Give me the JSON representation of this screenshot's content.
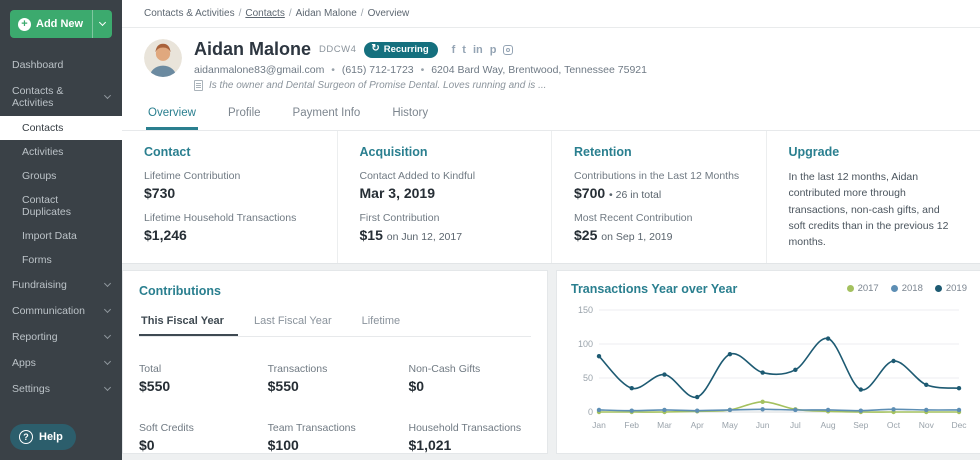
{
  "breadcrumb": {
    "parts": [
      "Contacts & Activities",
      "Contacts",
      "Aidan Malone",
      "Overview"
    ]
  },
  "sidebar": {
    "add_new_label": "Add New",
    "items": [
      {
        "label": "Dashboard"
      },
      {
        "label": "Contacts & Activities"
      },
      {
        "label": "Contacts"
      },
      {
        "label": "Activities"
      },
      {
        "label": "Groups"
      },
      {
        "label": "Contact Duplicates"
      },
      {
        "label": "Import Data"
      },
      {
        "label": "Forms"
      },
      {
        "label": "Fundraising"
      },
      {
        "label": "Communication"
      },
      {
        "label": "Reporting"
      },
      {
        "label": "Apps"
      },
      {
        "label": "Settings"
      }
    ],
    "help_label": "Help"
  },
  "header": {
    "name": "Aidan Malone",
    "code": "DDCW4",
    "badge": "Recurring",
    "email": "aidanmalone83@gmail.com",
    "phone": "(615) 712-1723",
    "address": "6204 Bard Way, Brentwood, Tennessee 75921",
    "note": "Is the owner and Dental Surgeon of Promise Dental. Loves running and is ...",
    "social_icons": [
      "facebook",
      "twitter",
      "linkedin",
      "pinterest",
      "instagram"
    ]
  },
  "tabs": [
    {
      "label": "Overview"
    },
    {
      "label": "Profile"
    },
    {
      "label": "Payment Info"
    },
    {
      "label": "History"
    }
  ],
  "cards": {
    "contact": {
      "title": "Contact",
      "fields": [
        {
          "label": "Lifetime Contribution",
          "value": "$730"
        },
        {
          "label": "Lifetime Household Transactions",
          "value": "$1,246"
        }
      ]
    },
    "acquisition": {
      "title": "Acquisition",
      "fields": [
        {
          "label": "Contact Added to Kindful",
          "value": "Mar 3, 2019"
        },
        {
          "label": "First Contribution",
          "value": "$15",
          "suffix": "on Jun 12, 2017"
        }
      ]
    },
    "retention": {
      "title": "Retention",
      "fields": [
        {
          "label": "Contributions in the Last 12 Months",
          "value": "$700",
          "suffix": "• 26 in total"
        },
        {
          "label": "Most Recent Contribution",
          "value": "$25",
          "suffix": "on Sep 1, 2019"
        }
      ]
    },
    "upgrade": {
      "title": "Upgrade",
      "text": "In the last 12 months, Aidan contributed more through transactions, non-cash gifts, and soft credits than in the previous 12 months."
    }
  },
  "contributions": {
    "title": "Contributions",
    "tabs": [
      {
        "label": "This Fiscal Year"
      },
      {
        "label": "Last Fiscal Year"
      },
      {
        "label": "Lifetime"
      }
    ],
    "stats": [
      {
        "label": "Total",
        "value": "$550"
      },
      {
        "label": "Transactions",
        "value": "$550"
      },
      {
        "label": "Non-Cash Gifts",
        "value": "$0"
      },
      {
        "label": "Soft Credits",
        "value": "$0"
      },
      {
        "label": "Team Transactions",
        "value": "$100"
      },
      {
        "label": "Household Transactions",
        "value": "$1,021"
      }
    ]
  },
  "chart_data": {
    "type": "line",
    "title": "Transactions Year over Year",
    "x": [
      "Jan",
      "Feb",
      "Mar",
      "Apr",
      "May",
      "Jun",
      "Jul",
      "Aug",
      "Sep",
      "Oct",
      "Nov",
      "Dec"
    ],
    "series": [
      {
        "name": "2017",
        "color": "#a4c15f",
        "values": [
          0,
          0,
          0,
          1,
          3,
          15,
          4,
          1,
          0,
          0,
          0,
          0
        ]
      },
      {
        "name": "2018",
        "color": "#5d8eb4",
        "values": [
          3,
          2,
          3,
          2,
          3,
          4,
          3,
          3,
          2,
          4,
          3,
          3
        ]
      },
      {
        "name": "2019",
        "color": "#1d5a72",
        "values": [
          82,
          35,
          55,
          22,
          85,
          58,
          62,
          108,
          33,
          75,
          40,
          35
        ]
      }
    ],
    "ylim": [
      0,
      150
    ],
    "yticks": [
      0,
      50,
      100,
      150
    ],
    "grid": true,
    "legend_position": "top-right"
  },
  "colors": {
    "accent_teal": "#2a7f8f",
    "brand_green": "#3caa6e",
    "sidebar_bg": "#3a4147",
    "badge_bg": "#15707e"
  }
}
